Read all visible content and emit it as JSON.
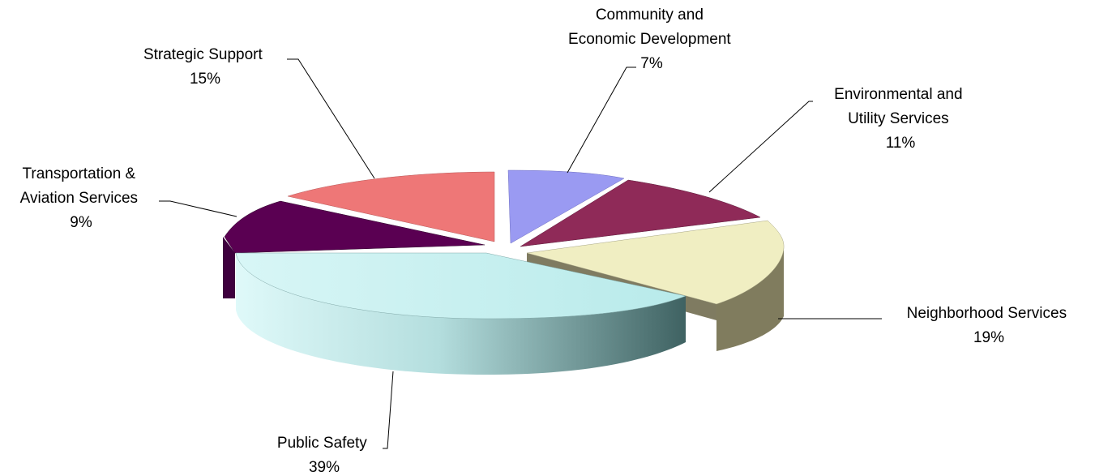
{
  "chart_data": {
    "type": "pie",
    "style": "3d-exploded",
    "title": "",
    "legend": "none",
    "slices": [
      {
        "name_lines": [
          "Community and",
          "Economic Development"
        ],
        "percent_label": "7%",
        "value": 7,
        "color": "#9999ff"
      },
      {
        "name_lines": [
          "Environmental and",
          "Utility Services"
        ],
        "percent_label": "11%",
        "value": 11,
        "color": "#993366"
      },
      {
        "name_lines": [
          "Neighborhood Services"
        ],
        "percent_label": "19%",
        "value": 19,
        "color": "#ffffcc"
      },
      {
        "name_lines": [
          "Public Safety"
        ],
        "percent_label": "39%",
        "value": 39,
        "color": "#ccffff"
      },
      {
        "name_lines": [
          "Transportation &",
          "Aviation Services"
        ],
        "percent_label": "9%",
        "value": 9,
        "color": "#660066"
      },
      {
        "name_lines": [
          "Strategic Support"
        ],
        "percent_label": "15%",
        "value": 15,
        "color": "#ff8080"
      }
    ]
  }
}
